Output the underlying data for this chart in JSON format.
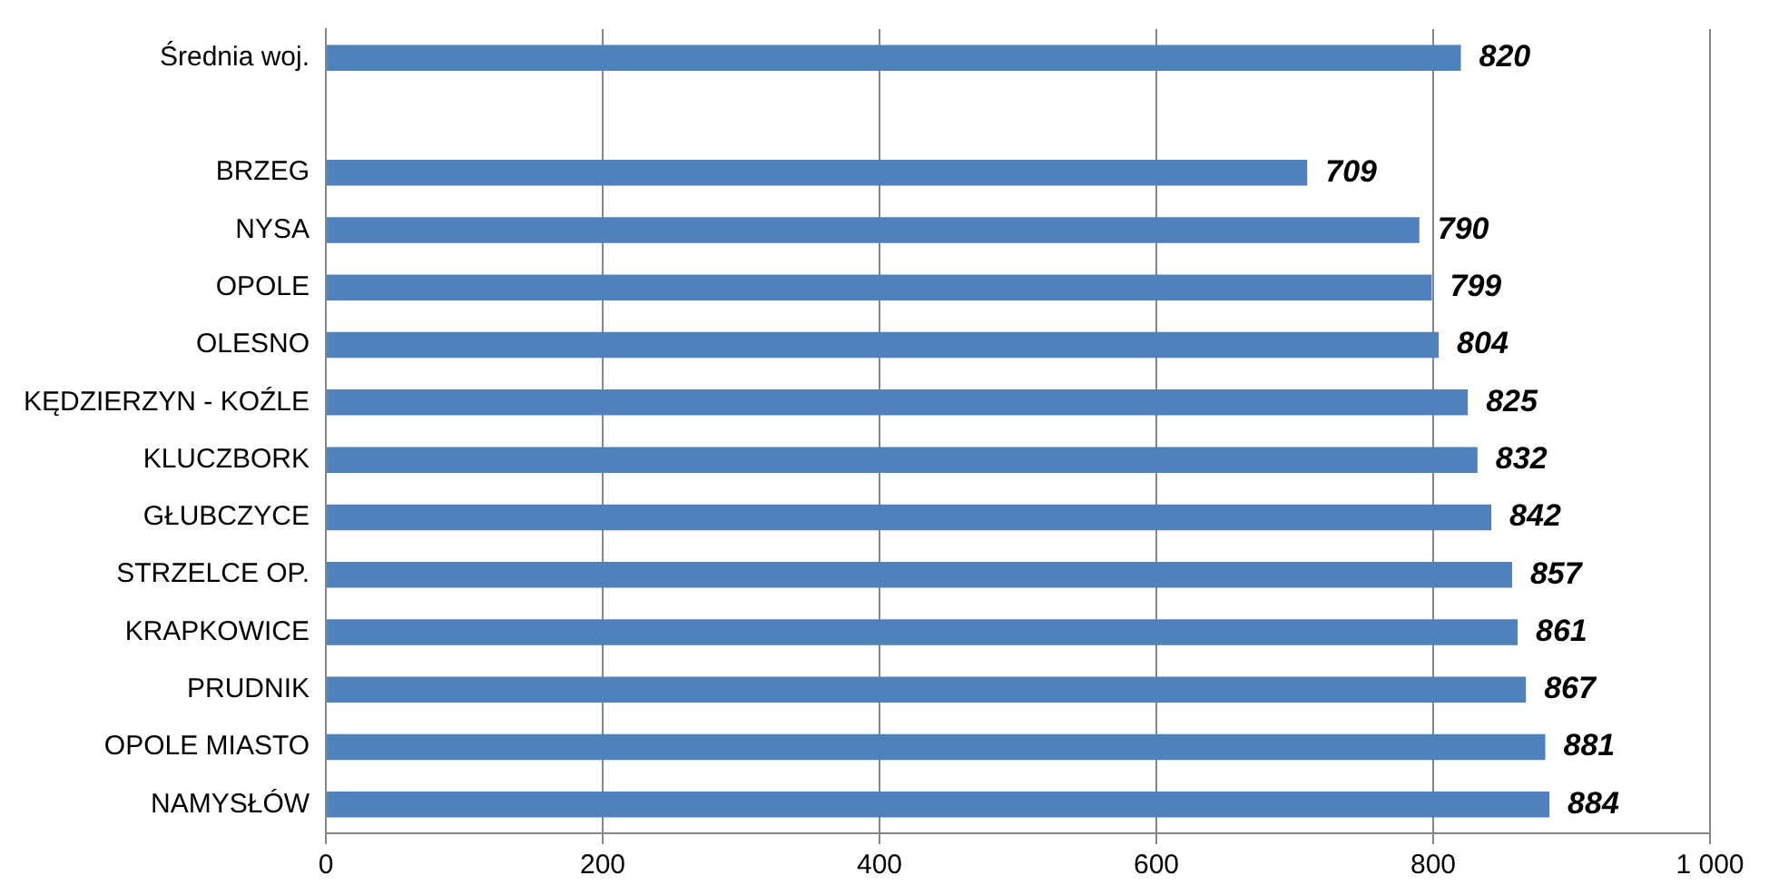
{
  "chart_data": {
    "type": "bar",
    "orientation": "horizontal",
    "categories": [
      "Średnia woj.",
      null,
      "BRZEG",
      "NYSA",
      "OPOLE",
      "OLESNO",
      "KĘDZIERZYN - KOŹLE",
      "KLUCZBORK",
      "GŁUBCZYCE",
      "STRZELCE OP.",
      "KRAPKOWICE",
      "PRUDNIK",
      "OPOLE MIASTO",
      "NAMYSŁÓW"
    ],
    "values": [
      820,
      null,
      709,
      790,
      799,
      804,
      825,
      832,
      842,
      857,
      861,
      867,
      881,
      884
    ],
    "color": "#4f81bd",
    "xlim": [
      0,
      1000
    ],
    "xticks": [
      0,
      200,
      400,
      600,
      800,
      {
        "value": 1000,
        "label": "1 000"
      }
    ],
    "grid": "x",
    "legend": false,
    "data_labels": true
  }
}
